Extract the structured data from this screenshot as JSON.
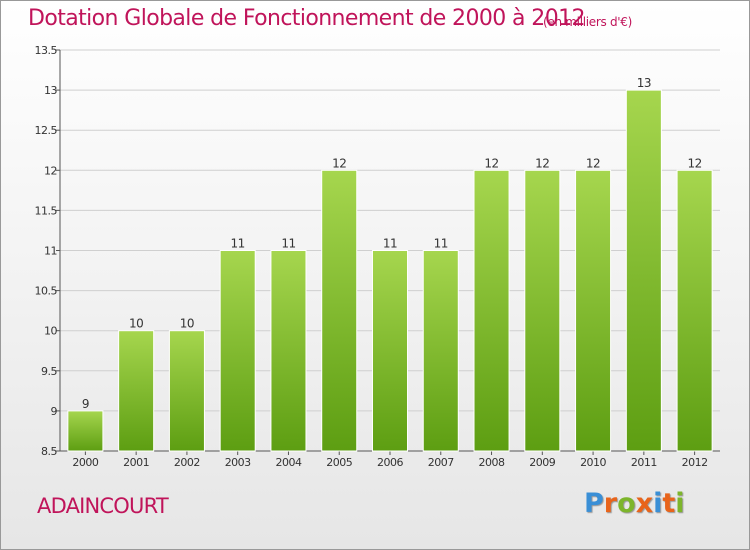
{
  "header": {
    "title": "Dotation Globale de Fonctionnement de 2000 à 2012",
    "unit": "(en milliers d'€)"
  },
  "footer": {
    "commune": "ADAINCOURT",
    "logo": "Proxiti",
    "logo_colors": [
      "#3a8fd6",
      "#e8641b",
      "#7db52b",
      "#e8641b",
      "#3a8fd6",
      "#e8641b",
      "#7db52b"
    ]
  },
  "colors": {
    "title": "#c0145a",
    "bar_light": "#a6d64e",
    "bar_dark": "#5d9e12",
    "grid": "#cfcfcf",
    "axis": "#555555"
  },
  "chart_data": {
    "type": "bar",
    "title": "Dotation Globale de Fonctionnement de 2000 à 2012",
    "subtitle": "(en milliers d'€)",
    "xlabel": "",
    "ylabel": "",
    "categories": [
      "2000",
      "2001",
      "2002",
      "2003",
      "2004",
      "2005",
      "2006",
      "2007",
      "2008",
      "2009",
      "2010",
      "2011",
      "2012"
    ],
    "values": [
      9,
      10,
      10,
      11,
      11,
      12,
      11,
      11,
      12,
      12,
      12,
      13,
      12
    ],
    "data_labels": [
      "9",
      "10",
      "10",
      "11",
      "11",
      "12",
      "11",
      "11",
      "12",
      "12",
      "12",
      "13",
      "12"
    ],
    "ylim": [
      8.5,
      13.5
    ],
    "yticks": [
      8.5,
      9,
      9.5,
      10,
      10.5,
      11,
      11.5,
      12,
      12.5,
      13,
      13.5
    ],
    "ytick_labels": [
      "8.5",
      "9",
      "9.5",
      "10",
      "10.5",
      "11",
      "11.5",
      "12",
      "12.5",
      "13",
      "13.5"
    ],
    "grid": true,
    "legend": "none"
  }
}
